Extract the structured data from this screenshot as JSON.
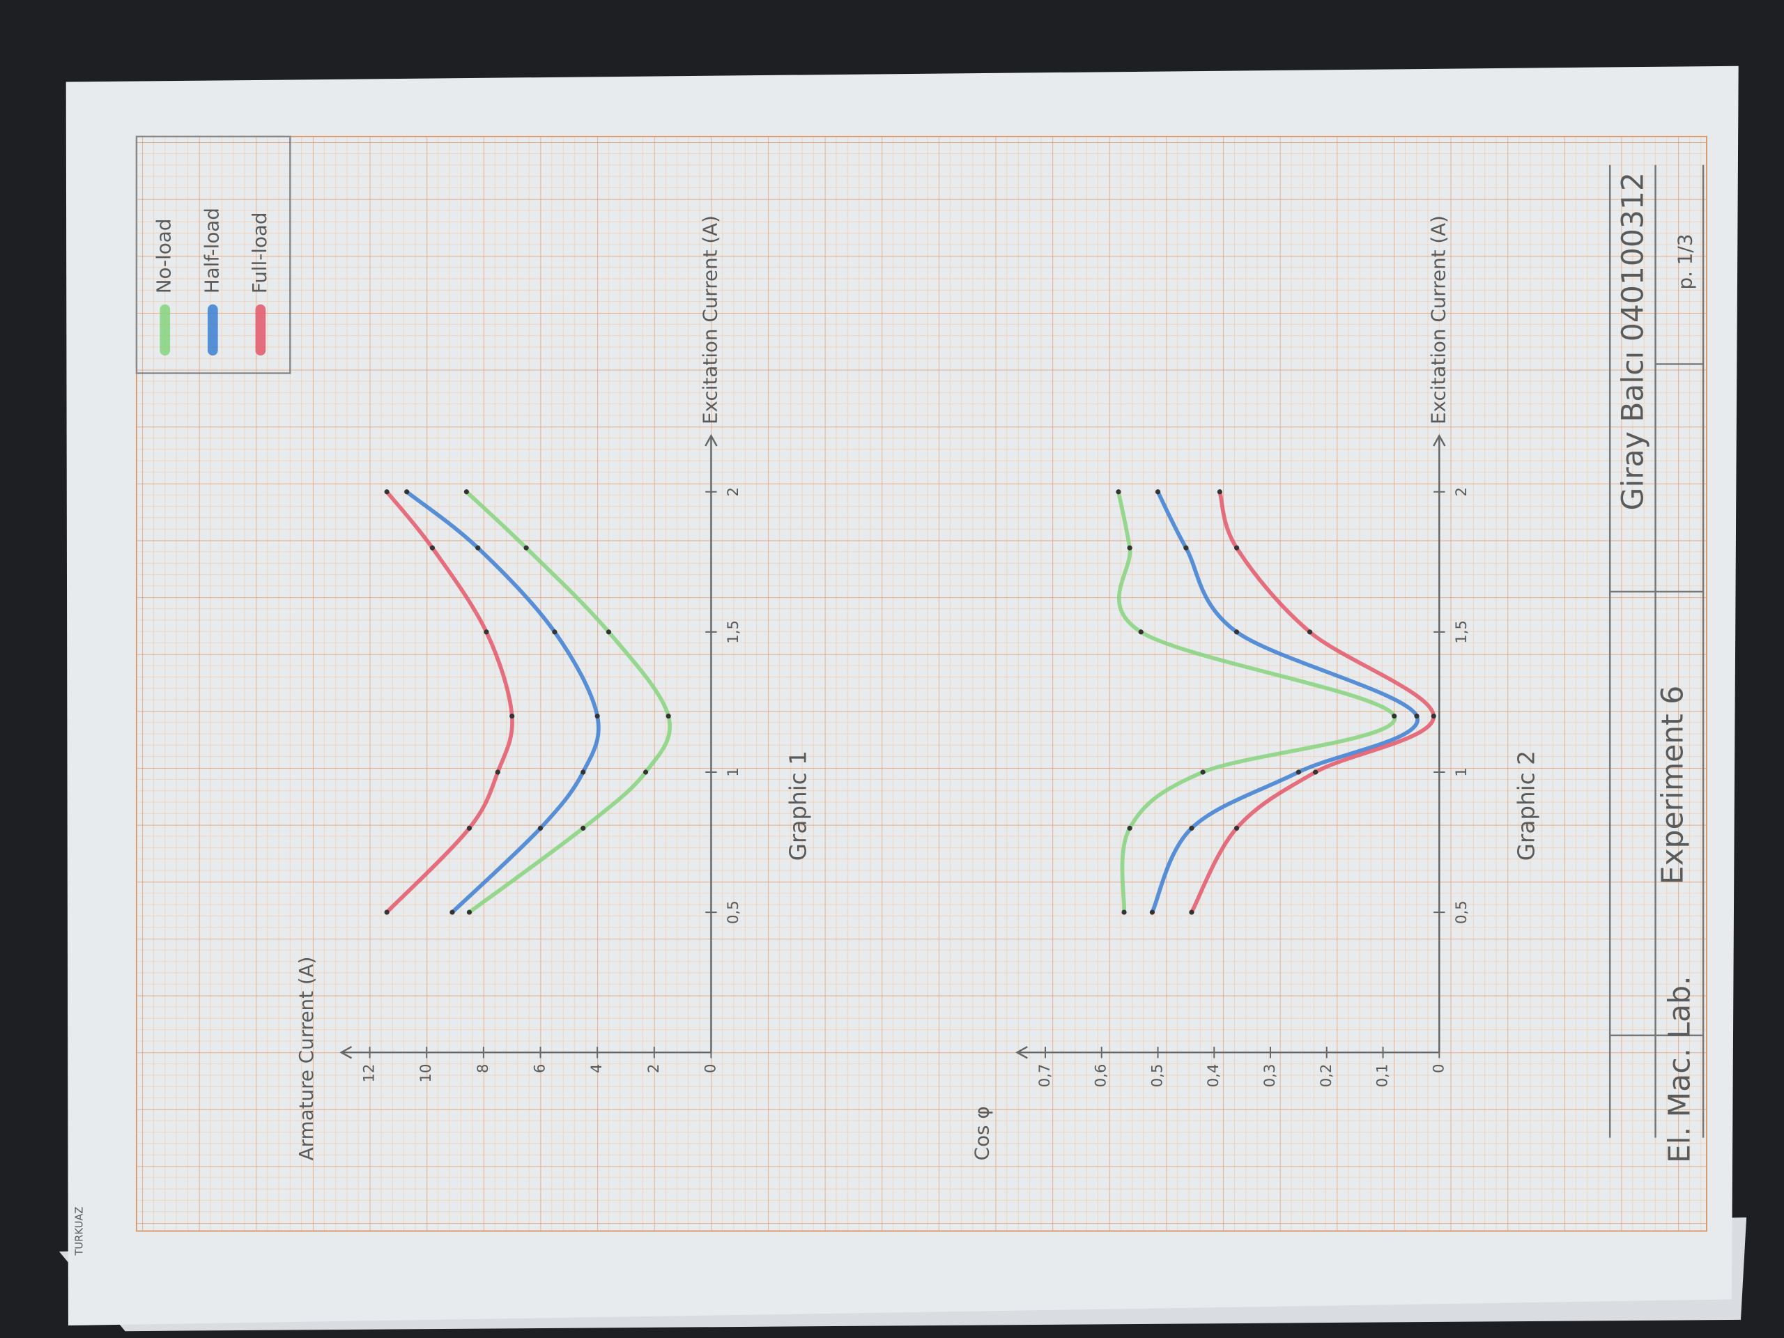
{
  "chart_data": [
    {
      "type": "line",
      "title": "Graphic 1",
      "xlabel": "Excitation Current (A)",
      "ylabel": "Armature Current (A)",
      "x": [
        0.5,
        0.8,
        1,
        1.2,
        1.5,
        1.8,
        2
      ],
      "series": [
        {
          "name": "No-load",
          "color": "#86d47e",
          "values": [
            8.5,
            4.5,
            2.3,
            1.5,
            3.6,
            6.5,
            8.6
          ]
        },
        {
          "name": "Half-load",
          "color": "#3c7fd2",
          "values": [
            9.1,
            6.0,
            4.5,
            4.0,
            5.5,
            8.2,
            10.7
          ]
        },
        {
          "name": "Full-load",
          "color": "#e4586a",
          "values": [
            11.4,
            8.5,
            7.5,
            7.0,
            7.9,
            9.8,
            11.4
          ]
        }
      ],
      "xlim": [
        0,
        2.2
      ],
      "ylim": [
        0,
        13
      ],
      "xticks": [
        {
          "value": 0.5,
          "label": "0,5"
        },
        1,
        {
          "value": 1.5,
          "label": "1,5"
        },
        2
      ],
      "yticks": [
        0,
        2,
        4,
        6,
        8,
        10,
        12
      ],
      "legend": "top-right"
    },
    {
      "type": "line",
      "title": "Graphic 2",
      "xlabel": "Excitation Current (A)",
      "ylabel": "Cos φ",
      "x": [
        0.5,
        0.8,
        1,
        1.2,
        1.5,
        1.8,
        2
      ],
      "series": [
        {
          "name": "No-load",
          "color": "#86d47e",
          "values": [
            0.56,
            0.55,
            0.42,
            0.08,
            0.53,
            0.55,
            0.57
          ]
        },
        {
          "name": "Half-load",
          "color": "#3c7fd2",
          "values": [
            0.51,
            0.44,
            0.25,
            0.04,
            0.36,
            0.45,
            0.5
          ]
        },
        {
          "name": "Full-load",
          "color": "#e4586a",
          "values": [
            0.44,
            0.36,
            0.22,
            0.01,
            0.23,
            0.36,
            0.39
          ]
        }
      ],
      "xlim": [
        0,
        2.2
      ],
      "ylim": [
        0,
        0.75
      ],
      "xticks": [
        {
          "value": 0.5,
          "label": "0,5"
        },
        1,
        {
          "value": 1.5,
          "label": "1,5"
        },
        2
      ],
      "yticks": [
        0,
        {
          "value": 0.1,
          "label": "0,1"
        },
        {
          "value": 0.2,
          "label": "0,2"
        },
        {
          "value": 0.3,
          "label": "0,3"
        },
        {
          "value": 0.4,
          "label": "0,4"
        },
        {
          "value": 0.5,
          "label": "0,5"
        },
        {
          "value": 0.6,
          "label": "0,6"
        },
        {
          "value": 0.7,
          "label": "0,7"
        }
      ]
    }
  ],
  "title_block": {
    "course": "El. Mac. Lab.",
    "experiment": "Experiment 6",
    "author": "Giray Balcı 040100312",
    "page": "p. 1/3"
  },
  "paper_brand": "TURKUAZ"
}
